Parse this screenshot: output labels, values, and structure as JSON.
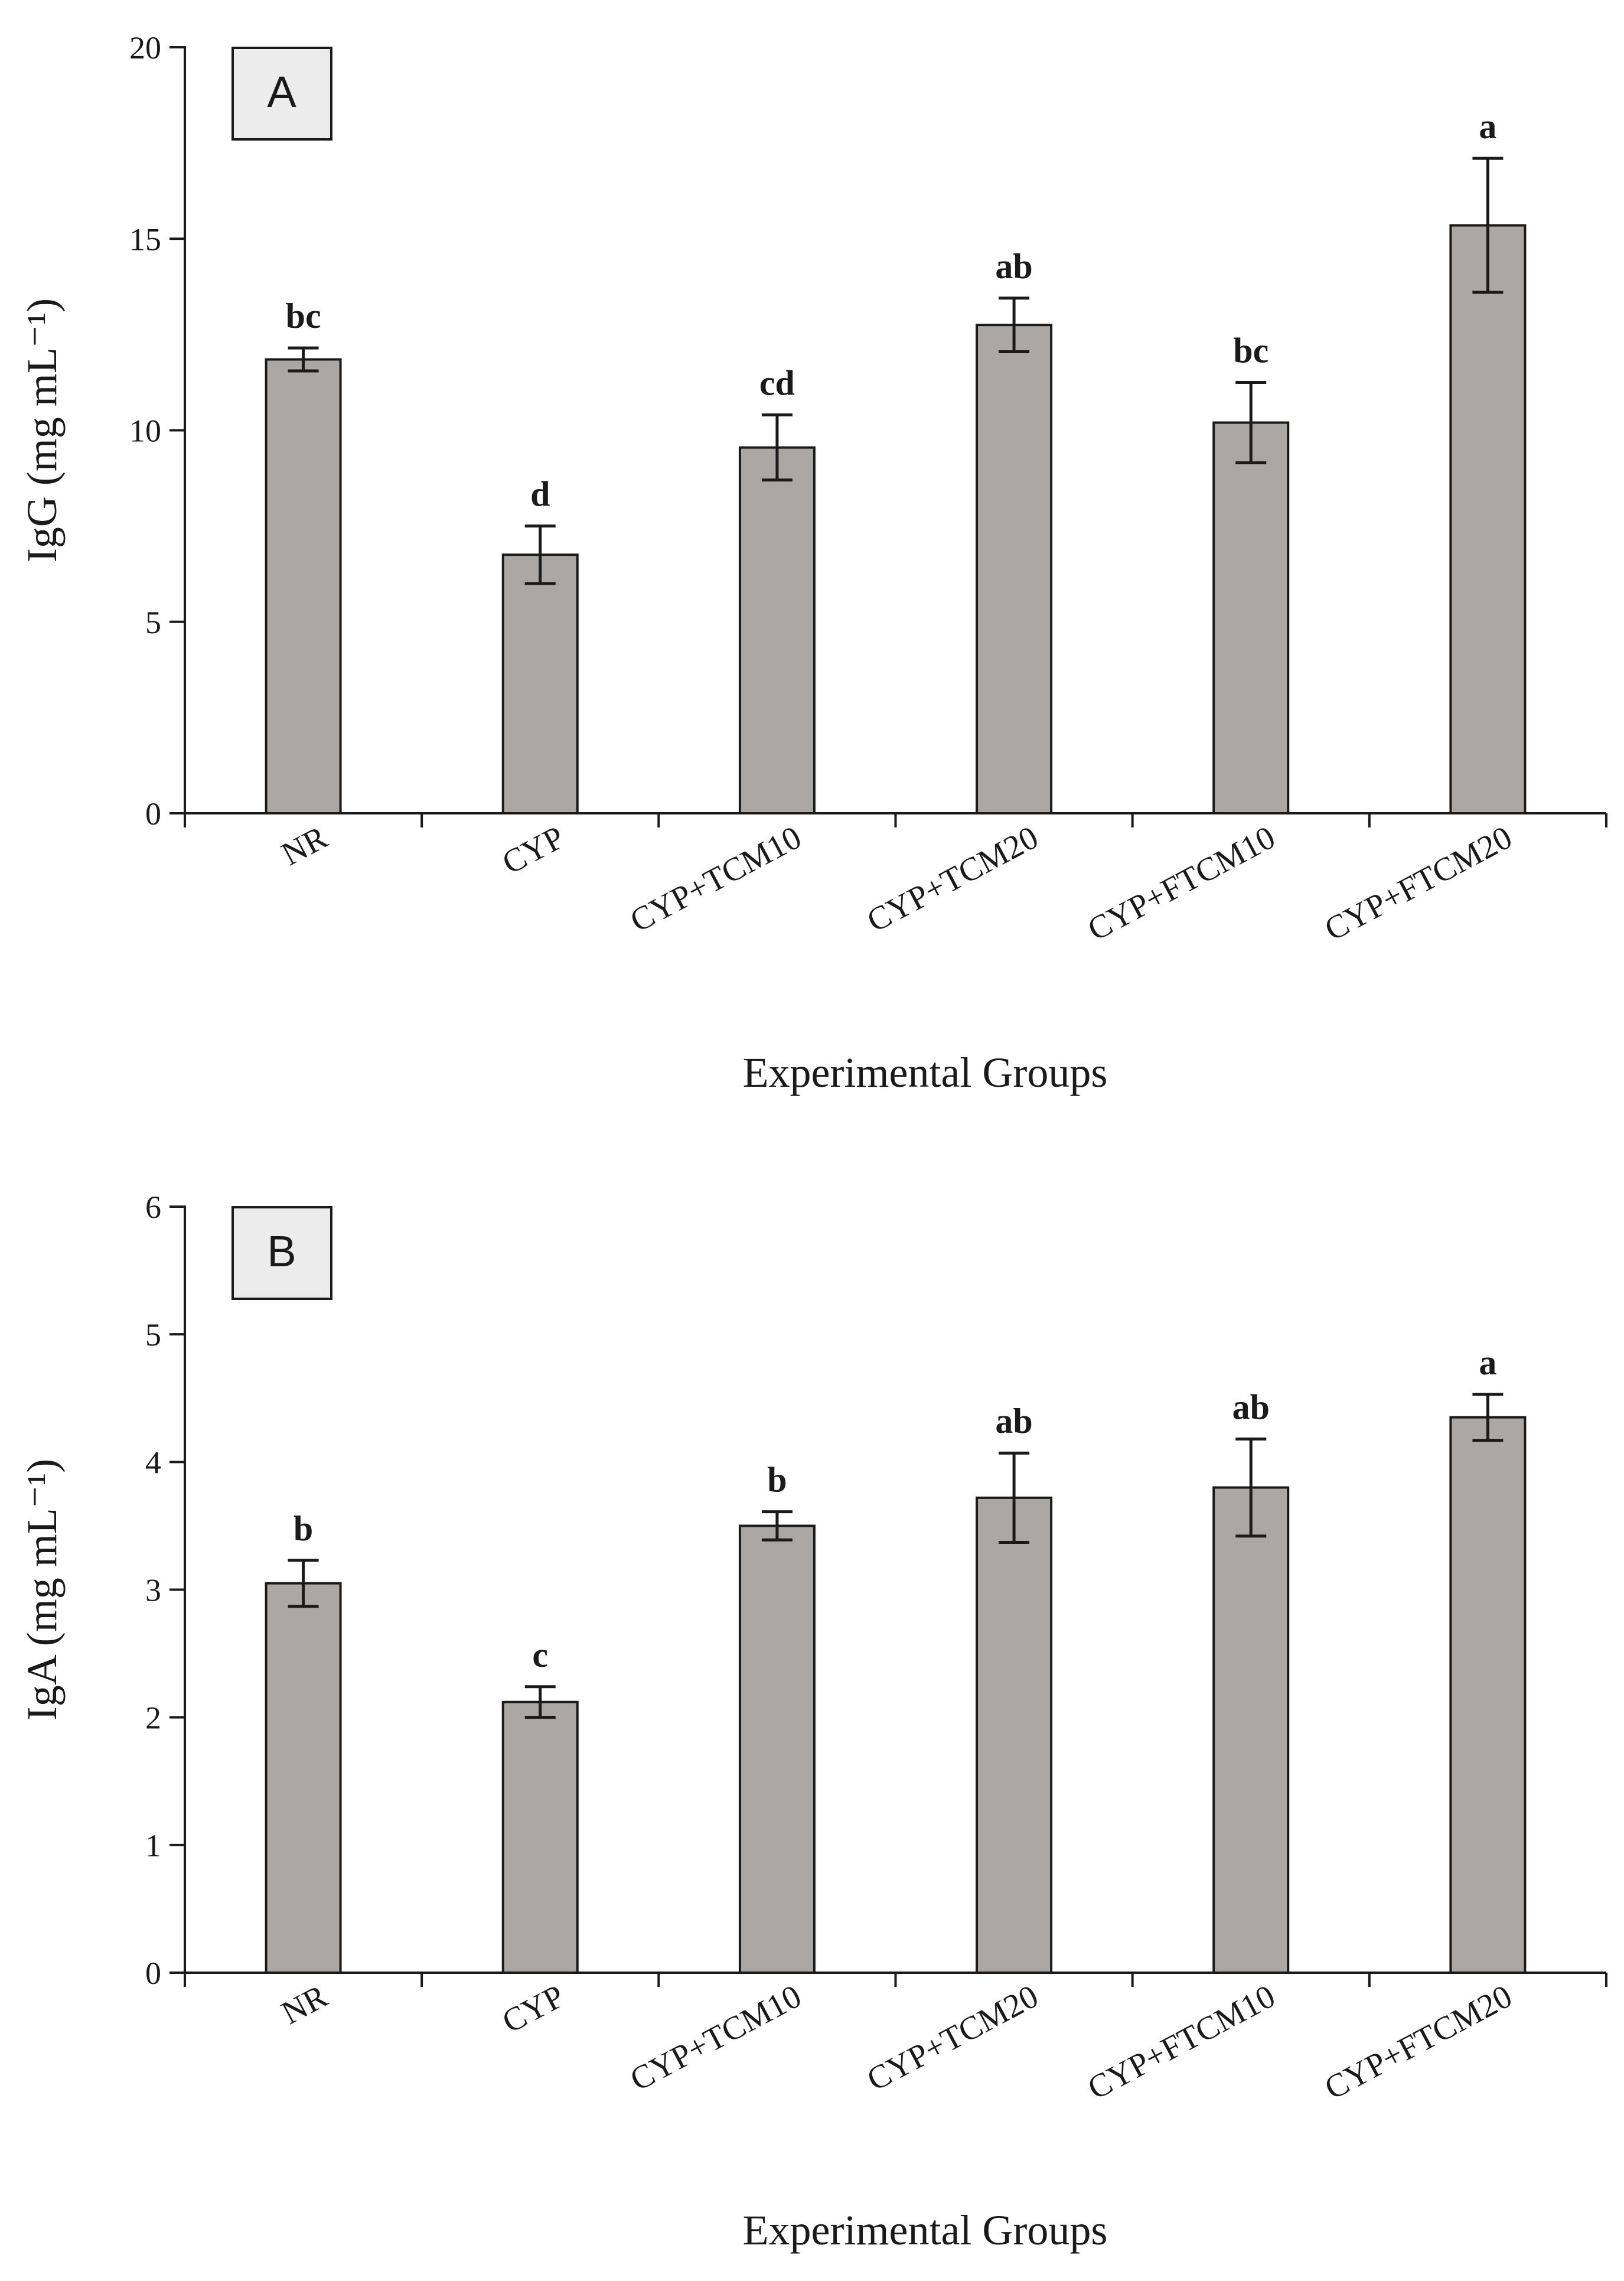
{
  "chart_data": [
    {
      "type": "bar",
      "panel_label": "A",
      "title": "",
      "categories": [
        "NR",
        "CYP",
        "CYP+TCM10",
        "CYP+TCM20",
        "CYP+FTCM10",
        "CYP+FTCM20"
      ],
      "values": [
        11.85,
        6.75,
        9.55,
        12.75,
        10.2,
        15.35
      ],
      "errors": [
        0.3,
        0.75,
        0.85,
        0.7,
        1.05,
        1.75
      ],
      "significance": [
        "bc",
        "d",
        "cd",
        "ab",
        "bc",
        "a"
      ],
      "xlabel": "Experimental Groups",
      "ylabel": "IgG (mg mL⁻¹)",
      "ylim": [
        0,
        20
      ],
      "yticks": [
        0,
        5,
        10,
        15,
        20
      ],
      "yticks_text": [
        "0",
        "5",
        "10",
        "15",
        "20"
      ],
      "bar_color": "#aaa7a5",
      "grid": false,
      "legend": "none"
    },
    {
      "type": "bar",
      "panel_label": "B",
      "title": "",
      "categories": [
        "NR",
        "CYP",
        "CYP+TCM10",
        "CYP+TCM20",
        "CYP+FTCM10",
        "CYP+FTCM20"
      ],
      "values": [
        3.05,
        2.12,
        3.5,
        3.72,
        3.8,
        4.35
      ],
      "errors": [
        0.18,
        0.12,
        0.11,
        0.35,
        0.38,
        0.18
      ],
      "significance": [
        "b",
        "c",
        "b",
        "ab",
        "ab",
        "a"
      ],
      "xlabel": "Experimental Groups",
      "ylabel": "IgA (mg mL⁻¹)",
      "ylim": [
        0,
        6
      ],
      "yticks": [
        0,
        1,
        2,
        3,
        4,
        5,
        6
      ],
      "yticks_text": [
        "0",
        "1",
        "2",
        "3",
        "4",
        "5",
        "6"
      ],
      "bar_color": "#aaa7a5",
      "grid": false,
      "legend": "none"
    }
  ]
}
